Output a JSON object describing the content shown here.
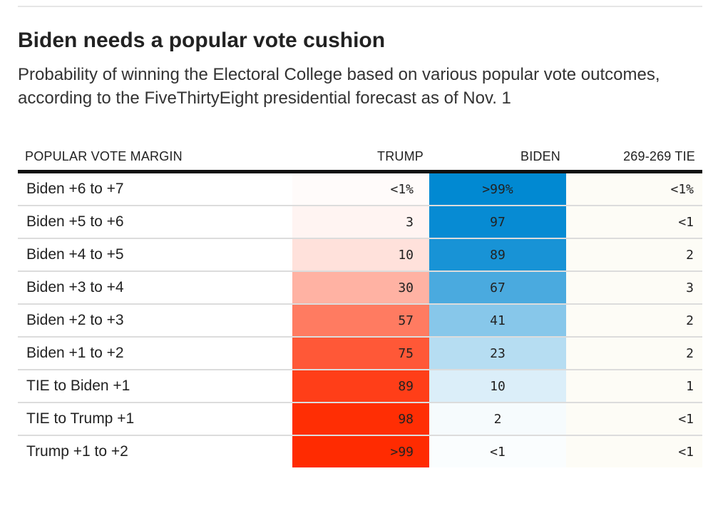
{
  "title": "Biden needs a popular vote cushion",
  "subtitle": "Probability of winning the Electoral College based on various popular vote outcomes, according to the FiveThirtyEight presidential forecast as of Nov. 1",
  "columns": {
    "margin": "POPULAR VOTE MARGIN",
    "trump": "TRUMP",
    "biden": "BIDEN",
    "tie": "269-269 TIE"
  },
  "colors": {
    "trump_scale_max": "#ff2a00",
    "biden_scale_max": "#0088d2",
    "tie_tint": "#fdfcf6"
  },
  "chart_data": {
    "type": "table",
    "title": "Biden needs a popular vote cushion",
    "subtitle": "Probability of winning the Electoral College based on various popular vote outcomes, according to the FiveThirtyEight presidential forecast as of Nov. 1",
    "columns": [
      "POPULAR VOTE MARGIN",
      "TRUMP",
      "BIDEN",
      "269-269 TIE"
    ],
    "rows": [
      {
        "margin": "Biden +6 to +7",
        "trump": "<1%",
        "biden": ">99%",
        "tie": "<1%",
        "trump_value": 0.5,
        "biden_value": 99.5
      },
      {
        "margin": "Biden +5 to +6",
        "trump": "3",
        "biden": "97",
        "tie": "<1",
        "trump_value": 3,
        "biden_value": 97
      },
      {
        "margin": "Biden +4 to +5",
        "trump": "10",
        "biden": "89",
        "tie": "2",
        "trump_value": 10,
        "biden_value": 89
      },
      {
        "margin": "Biden +3 to +4",
        "trump": "30",
        "biden": "67",
        "tie": "3",
        "trump_value": 30,
        "biden_value": 67
      },
      {
        "margin": "Biden +2 to +3",
        "trump": "57",
        "biden": "41",
        "tie": "2",
        "trump_value": 57,
        "biden_value": 41
      },
      {
        "margin": "Biden +1 to +2",
        "trump": "75",
        "biden": "23",
        "tie": "2",
        "trump_value": 75,
        "biden_value": 23
      },
      {
        "margin": "TIE to Biden +1",
        "trump": "89",
        "biden": "10",
        "tie": "1",
        "trump_value": 89,
        "biden_value": 10
      },
      {
        "margin": "TIE to Trump +1",
        "trump": "98",
        "biden": "2",
        "tie": "<1",
        "trump_value": 98,
        "biden_value": 2
      },
      {
        "margin": "Trump +1 to +2",
        "trump": ">99",
        "biden": "<1",
        "tie": "<1",
        "trump_value": 99.5,
        "biden_value": 0.5
      }
    ]
  }
}
